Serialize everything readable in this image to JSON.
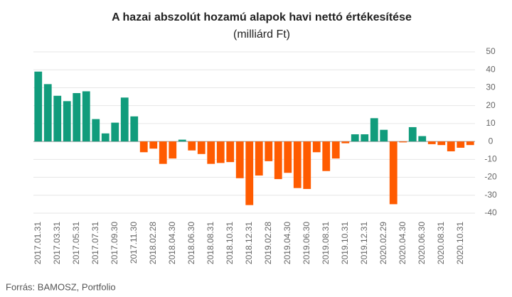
{
  "chart_data": {
    "type": "bar",
    "title": "A hazai abszolút hozamú alapok havi nettó értékesítése",
    "subtitle": "(milliárd Ft)",
    "source": "Forrás: BAMOSZ, Portfolio",
    "categories": [
      "2017.01.31",
      null,
      "2017.03.31",
      null,
      "2017.05.31",
      null,
      "2017.07.31",
      null,
      "2017.09.30",
      null,
      "2017.11.30",
      null,
      "2018.02.28",
      null,
      "2018.04.30",
      null,
      "2018.06.30",
      null,
      "2018.08.31",
      null,
      "2018.10.31",
      null,
      "2018.12.31",
      null,
      "2019.02.28",
      null,
      "2019.04.30",
      null,
      "2019.06.30",
      null,
      "2019.08.31",
      null,
      "2019.10.31",
      null,
      "2019.12.31",
      null,
      "2020.02.29",
      null,
      "2020.04.30",
      null,
      "2020.06.30",
      null,
      "2020.08.31",
      null,
      "2020.10.31",
      null
    ],
    "values": [
      39,
      32,
      25.5,
      22.5,
      27,
      28,
      12.5,
      4.5,
      10.5,
      24.5,
      14,
      -6,
      -4,
      -12.5,
      -9.5,
      1,
      -5,
      -7,
      -12.5,
      -12,
      -11.5,
      -20.5,
      -35.5,
      -19,
      -11,
      -21,
      -17.5,
      -26,
      -26.5,
      -6,
      -16.5,
      -9.5,
      -1,
      4,
      4,
      13,
      6.5,
      -35,
      -0.5,
      8,
      3,
      -1.5,
      -2,
      -5.5,
      -3.5,
      -2
    ],
    "positive_color": "#119c7c",
    "negative_color": "#ff5b00",
    "ylim": [
      -40,
      50
    ],
    "yticks": [
      -40,
      -30,
      -20,
      -10,
      0,
      10,
      20,
      30,
      40,
      50
    ],
    "grid": true,
    "y_axis_side": "right"
  }
}
